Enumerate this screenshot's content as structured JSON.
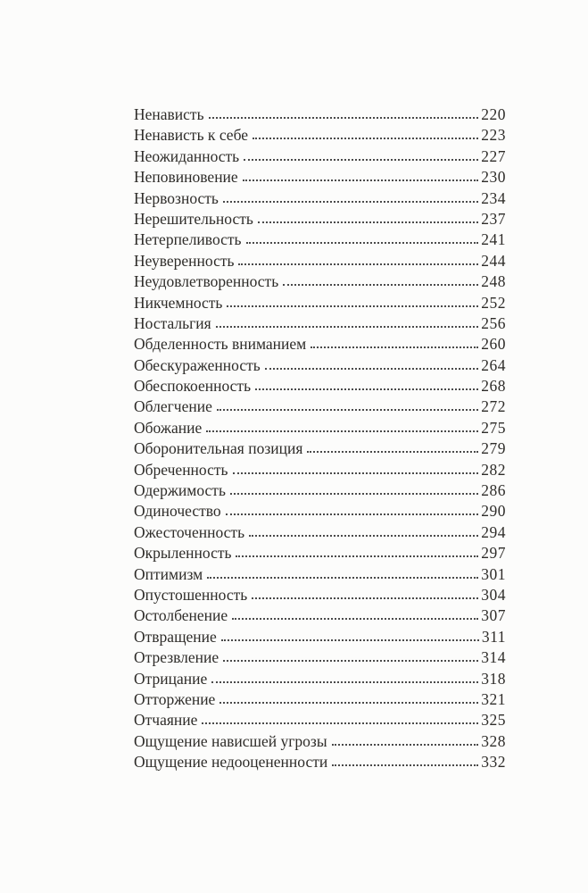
{
  "page": {
    "background": "#fcfcfb",
    "text_color": "#2e2c29",
    "leader_dot_color": "#4a4a4a"
  },
  "toc": {
    "entries": [
      {
        "title": "Ненависть",
        "page": "220"
      },
      {
        "title": "Ненависть к себе",
        "page": "223"
      },
      {
        "title": "Неожиданность",
        "page": "227"
      },
      {
        "title": "Неповиновение",
        "page": "230"
      },
      {
        "title": "Нервозность",
        "page": "234"
      },
      {
        "title": "Нерешительность",
        "page": "237"
      },
      {
        "title": "Нетерпеливость",
        "page": "241"
      },
      {
        "title": "Неуверенность",
        "page": "244"
      },
      {
        "title": "Неудовлетворенность",
        "page": "248"
      },
      {
        "title": "Никчемность",
        "page": "252"
      },
      {
        "title": "Ностальгия",
        "page": "256"
      },
      {
        "title": "Обделенность вниманием",
        "page": "260"
      },
      {
        "title": "Обескураженность",
        "page": "264"
      },
      {
        "title": "Обеспокоенность",
        "page": "268"
      },
      {
        "title": "Облегчение",
        "page": "272"
      },
      {
        "title": "Обожание",
        "page": "275"
      },
      {
        "title": "Оборонительная позиция",
        "page": "279"
      },
      {
        "title": "Обреченность",
        "page": "282"
      },
      {
        "title": "Одержимость",
        "page": "286"
      },
      {
        "title": "Одиночество",
        "page": "290"
      },
      {
        "title": "Ожесточенность",
        "page": "294"
      },
      {
        "title": "Окрыленность",
        "page": "297"
      },
      {
        "title": "Оптимизм",
        "page": "301"
      },
      {
        "title": "Опустошенность",
        "page": "304"
      },
      {
        "title": "Остолбенение",
        "page": "307"
      },
      {
        "title": "Отвращение",
        "page": "311"
      },
      {
        "title": "Отрезвление",
        "page": "314"
      },
      {
        "title": "Отрицание",
        "page": "318"
      },
      {
        "title": "Отторжение",
        "page": "321"
      },
      {
        "title": "Отчаяние",
        "page": "325"
      },
      {
        "title": "Ощущение нависшей угрозы",
        "page": "328"
      },
      {
        "title": "Ощущение недооцененности",
        "page": "332"
      }
    ]
  }
}
